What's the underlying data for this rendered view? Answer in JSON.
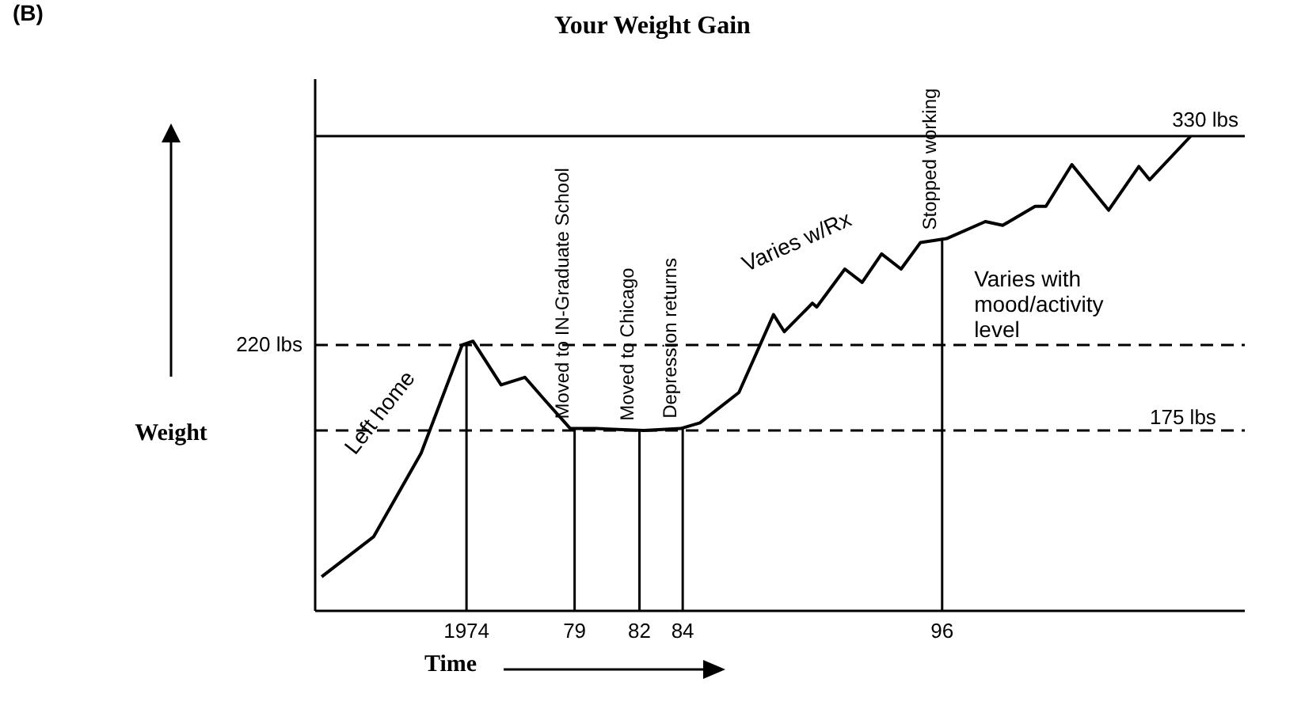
{
  "chart_data": {
    "type": "line",
    "title": "Your Weight Gain",
    "xlabel": "Time",
    "ylabel": "Weight",
    "x": [
      1967.3,
      1969.7,
      1971.9,
      1973.8,
      1974.3,
      1975.6,
      1976.7,
      1977.7,
      1978.8,
      1980.0,
      1982.2,
      1983.9,
      1984.8,
      1986.6,
      1988.2,
      1988.7,
      1990.0,
      1990.2,
      1991.5,
      1992.3,
      1993.2,
      1994.1,
      1995.0,
      1996.2,
      1998.0,
      1998.8,
      2000.3,
      2000.8,
      2002.0,
      2003.7,
      2005.1,
      2005.6,
      2007.5
    ],
    "series": [
      {
        "color": "#000000",
        "values": [
          98,
          119,
          163,
          220,
          222,
          199,
          203,
          190,
          176,
          176,
          175,
          176,
          179,
          195,
          236,
          227,
          242,
          240,
          260,
          253,
          268,
          260,
          274,
          276,
          285,
          283,
          293,
          293,
          315,
          291,
          314,
          307,
          330
        ]
      }
    ],
    "xlim": [
      1967,
      2010
    ],
    "ylim": [
      80,
      360
    ],
    "xticks": [
      1974,
      {
        "value": 1979,
        "label": "79"
      },
      {
        "value": 1982,
        "label": "82"
      },
      {
        "value": 1984,
        "label": "84"
      },
      {
        "value": 1996,
        "label": "96"
      }
    ],
    "tick_labels": "x",
    "grid": false,
    "legend": false,
    "marker": "none",
    "line_style": "solid",
    "ref_lines": [
      {
        "axis": "x",
        "value": 1974,
        "label": null
      },
      {
        "axis": "x",
        "value": 1979,
        "label": "Moved to IN-Graduate School"
      },
      {
        "axis": "x",
        "value": 1982,
        "label": "Moved to Chicago"
      },
      {
        "axis": "x",
        "value": 1984,
        "label": "Depression returns"
      },
      {
        "axis": "x",
        "value": 1996,
        "label": "Stopped working"
      },
      {
        "axis": "y",
        "value": 220,
        "label": "220 lbs",
        "line_style": "dashed"
      },
      {
        "axis": "y",
        "value": 175,
        "label": "175 lbs",
        "line_style": "dashed"
      },
      {
        "axis": "y",
        "value": 330,
        "label": "330 lbs",
        "line_style": "solid"
      }
    ],
    "annotations": [
      "(B)",
      "Left home",
      "Varies w/Rx",
      "Varies with mood/activity level"
    ]
  }
}
